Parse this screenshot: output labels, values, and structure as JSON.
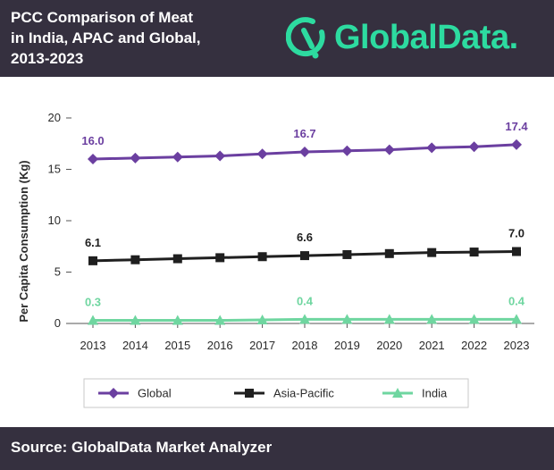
{
  "title_lines": [
    "PCC Comparison of Meat",
    "in India, APAC and Global,",
    "2013-2023"
  ],
  "logo": {
    "text": "GlobalData."
  },
  "source": "Source: GlobalData Market Analyzer",
  "colors": {
    "header_bg": "#35303f",
    "brand": "#2ddba0",
    "global": "#6b3fa0",
    "apac": "#1f1f1f",
    "india": "#6fd6a0"
  },
  "chart_data": {
    "type": "line",
    "title": "PCC Comparison of Meat in India, APAC and Global, 2013-2023",
    "xlabel": "",
    "ylabel": "Per Capita Consumption (Kg)",
    "ylim": [
      0,
      20
    ],
    "yticks": [
      0,
      5,
      10,
      15,
      20
    ],
    "x": [
      "2013",
      "2014",
      "2015",
      "2016",
      "2017",
      "2018",
      "2019",
      "2020",
      "2021",
      "2022",
      "2023"
    ],
    "legend_position": "bottom",
    "series": [
      {
        "name": "Global",
        "marker": "diamond",
        "color": "#6b3fa0",
        "values": [
          16.0,
          16.1,
          16.2,
          16.3,
          16.5,
          16.7,
          16.8,
          16.9,
          17.1,
          17.2,
          17.4
        ],
        "labels": [
          {
            "index": 0,
            "text": "16.0"
          },
          {
            "index": 5,
            "text": "16.7"
          },
          {
            "index": 10,
            "text": "17.4"
          }
        ]
      },
      {
        "name": "Asia-Pacific",
        "marker": "square",
        "color": "#1f1f1f",
        "values": [
          6.1,
          6.2,
          6.3,
          6.4,
          6.5,
          6.6,
          6.7,
          6.8,
          6.9,
          6.95,
          7.0
        ],
        "labels": [
          {
            "index": 0,
            "text": "6.1"
          },
          {
            "index": 5,
            "text": "6.6"
          },
          {
            "index": 10,
            "text": "7.0"
          }
        ]
      },
      {
        "name": "India",
        "marker": "triangle",
        "color": "#6fd6a0",
        "values": [
          0.3,
          0.3,
          0.3,
          0.3,
          0.35,
          0.4,
          0.4,
          0.4,
          0.4,
          0.4,
          0.4
        ],
        "labels": [
          {
            "index": 0,
            "text": "0.3"
          },
          {
            "index": 5,
            "text": "0.4"
          },
          {
            "index": 10,
            "text": "0.4"
          }
        ]
      }
    ]
  }
}
